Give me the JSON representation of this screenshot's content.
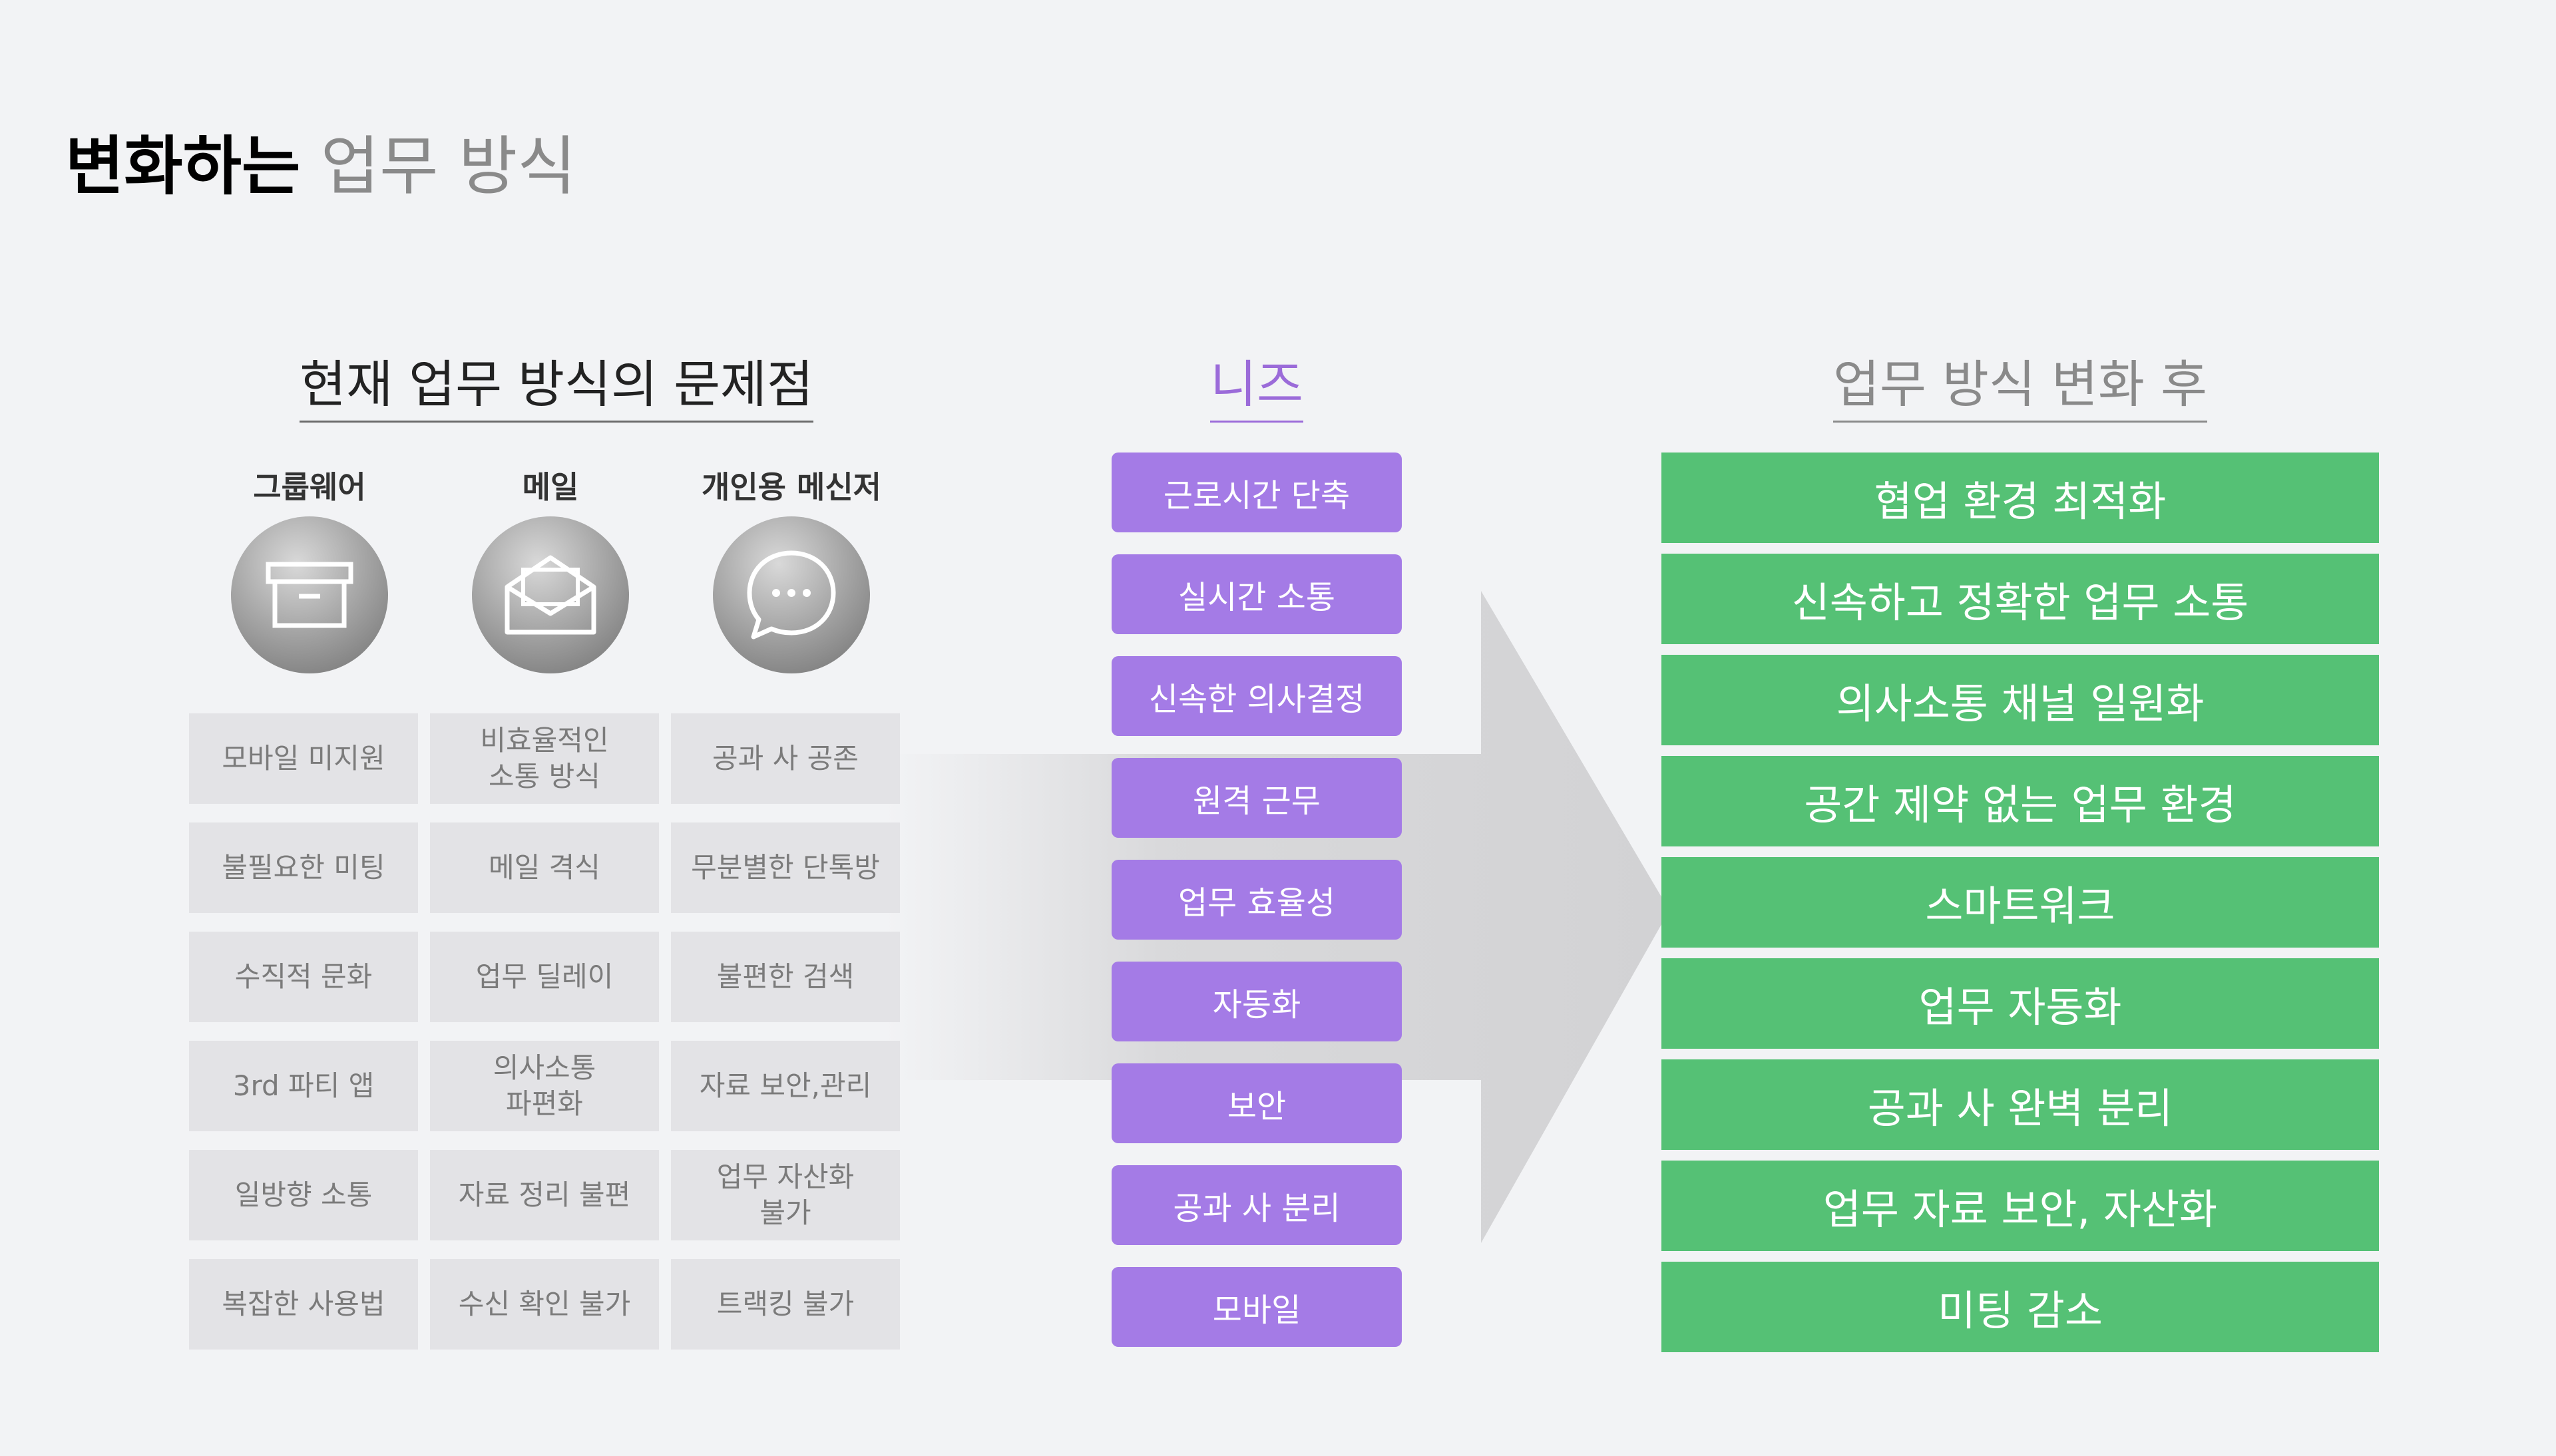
{
  "title": {
    "strong": "변화하는",
    "light": "업무 방식"
  },
  "sections": {
    "problems": "현재 업무 방식의 문제점",
    "needs": "니즈",
    "after": "업무 방식 변화 후"
  },
  "tools": [
    {
      "label": "그룹웨어",
      "icon": "archive-box-icon"
    },
    {
      "label": "메일",
      "icon": "envelope-icon"
    },
    {
      "label": "개인용 메신저",
      "icon": "chat-bubble-icon"
    }
  ],
  "problems": [
    [
      "모바일 미지원",
      "비효율적인\n소통 방식",
      "공과 사 공존"
    ],
    [
      "불필요한 미팅",
      "메일 격식",
      "무분별한 단톡방"
    ],
    [
      "수직적 문화",
      "업무 딜레이",
      "불편한 검색"
    ],
    [
      "3rd 파티 앱",
      "의사소통\n파편화",
      "자료 보안,관리"
    ],
    [
      "일방향 소통",
      "자료 정리 불편",
      "업무 자산화\n불가"
    ],
    [
      "복잡한 사용법",
      "수신 확인 불가",
      "트랙킹 불가"
    ]
  ],
  "needs": [
    "근로시간 단축",
    "실시간 소통",
    "신속한 의사결정",
    "원격 근무",
    "업무 효율성",
    "자동화",
    "보안",
    "공과 사 분리",
    "모바일"
  ],
  "after": [
    "협업 환경 최적화",
    "신속하고 정확한 업무 소통",
    "의사소통 채널 일원화",
    "공간 제약 없는 업무 환경",
    "스마트워크",
    "업무 자동화",
    "공과 사 완벽 분리",
    "업무 자료 보안, 자산화",
    "미팅 감소"
  ],
  "colors": {
    "needs": "#a47be6",
    "after": "#55c175",
    "cell": "#e2e2e4",
    "accent": "#9b6bd9"
  }
}
